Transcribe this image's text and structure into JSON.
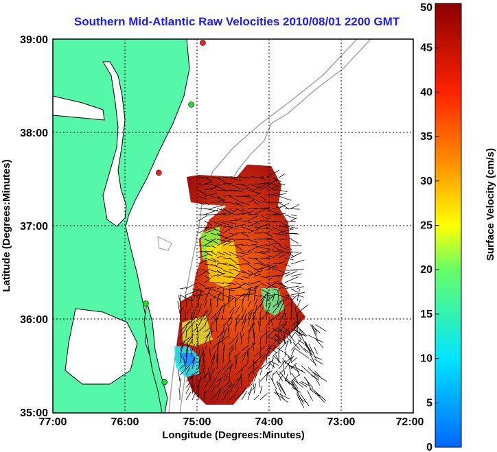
{
  "title": "Southern Mid-Atlantic Raw Velocities 2010/08/01 2200 GMT",
  "x_axis": {
    "label": "Longitude (Degrees:Minutes)",
    "ticks": [
      "77:00",
      "76:00",
      "75:00",
      "74:00",
      "73:00",
      "72:00"
    ]
  },
  "y_axis": {
    "label": "Latitude (Degrees:Minutes)",
    "ticks": [
      "39:00",
      "38:00",
      "37:00",
      "36:00",
      "35:00"
    ]
  },
  "colorbar": {
    "label": "Surface Velocity (cm/s)",
    "ticks": [
      "0",
      "5",
      "10",
      "15",
      "20",
      "25",
      "30",
      "35",
      "40",
      "45",
      "50"
    ],
    "min": 0,
    "max": 50
  },
  "colors": {
    "land": "#55f7a9",
    "ocean": "#ffffff",
    "title": "#1a1aff",
    "grid": "#000000",
    "bathymetry": "#999999",
    "station_green": "#22dd22",
    "station_red": "#ee2222"
  },
  "map_extent": {
    "lon": [
      -77,
      -72
    ],
    "lat": [
      35,
      39
    ]
  },
  "stations": [
    {
      "lon": -74.92,
      "lat": 38.96,
      "status": "red"
    },
    {
      "lon": -75.08,
      "lat": 38.3,
      "status": "green"
    },
    {
      "lon": -75.53,
      "lat": 37.57,
      "status": "red"
    },
    {
      "lon": -75.71,
      "lat": 36.17,
      "status": "green"
    },
    {
      "lon": -75.45,
      "lat": 35.33,
      "status": "green"
    }
  ]
}
